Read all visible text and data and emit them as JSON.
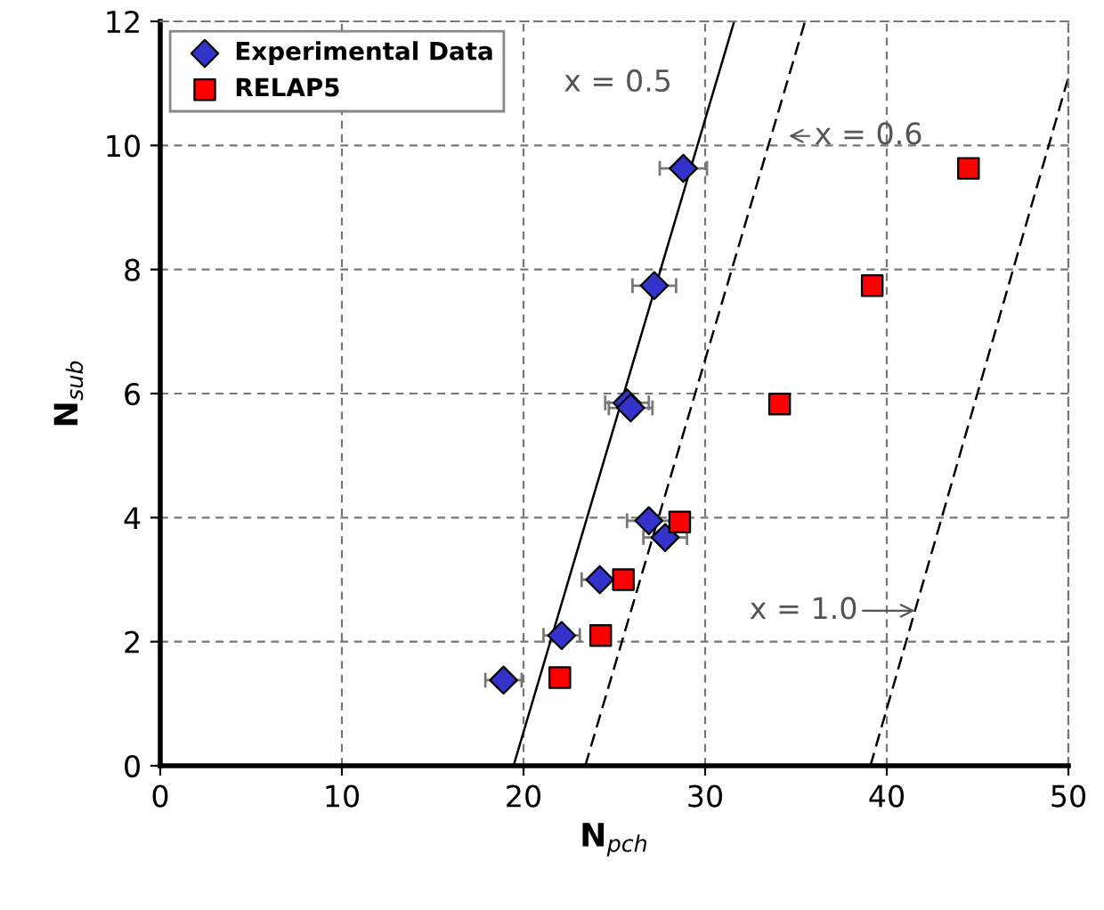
{
  "chart_data": {
    "type": "scatter",
    "xlabel": "N$_{pch}$",
    "ylabel": "N$_{sub}$",
    "xlim": [
      0,
      50
    ],
    "ylim": [
      0,
      12
    ],
    "xticks": [
      0,
      10,
      20,
      30,
      40,
      50
    ],
    "yticks": [
      0,
      2,
      4,
      6,
      8,
      10,
      12
    ],
    "grid": true,
    "legend": "top left",
    "series": [
      {
        "name": "Experimental Data",
        "marker": "diamond",
        "color": "#3333cc",
        "x": [
          18.9,
          22.1,
          24.2,
          26.9,
          27.8,
          25.7,
          25.9,
          27.2,
          28.8
        ],
        "values": [
          1.38,
          2.1,
          3.0,
          3.95,
          3.68,
          5.85,
          5.77,
          7.74,
          9.63
        ],
        "xerrors": [
          1.0,
          1.0,
          1.0,
          1.2,
          1.2,
          1.2,
          1.2,
          1.2,
          1.3
        ]
      },
      {
        "name": "RELAP5",
        "marker": "square",
        "color": "#ff0000",
        "x": [
          22.0,
          24.25,
          25.5,
          28.6,
          34.1,
          39.2,
          44.5
        ],
        "values": [
          1.42,
          2.1,
          3.0,
          3.93,
          5.83,
          7.74,
          9.63
        ]
      },
      {
        "type": "line",
        "color": "#000000",
        "line_style": "solid",
        "x": [
          19.45,
          31.6
        ],
        "values": [
          0,
          12
        ]
      },
      {
        "type": "line",
        "color": "#000000",
        "line_style": "dashed",
        "x": [
          23.4,
          35.5
        ],
        "values": [
          0,
          12
        ]
      },
      {
        "type": "line",
        "color": "#000000",
        "line_style": "dashed",
        "x": [
          39.1,
          50
        ],
        "values": [
          0,
          11.1
        ]
      }
    ],
    "annotations": [
      "x = 0.5",
      "x = 0.6",
      {
        "text": "x = 1.0",
        "x": 41.55,
        "y": 2.5
      }
    ]
  }
}
